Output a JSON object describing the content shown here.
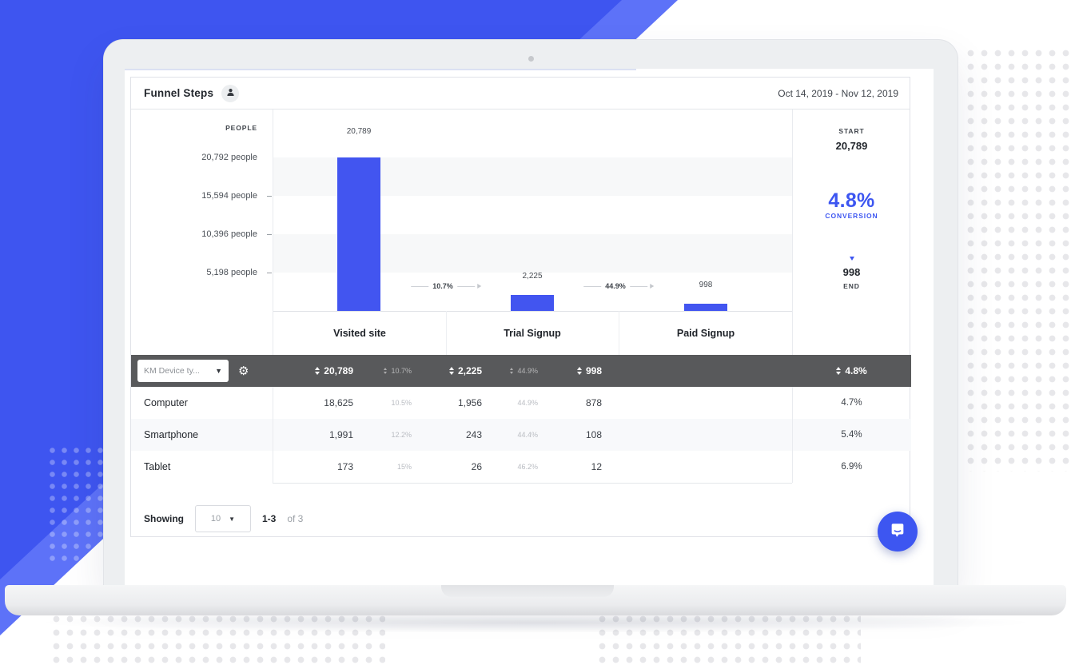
{
  "window": {
    "date_range": "Oct 14, 2019 - Nov 12, 2019"
  },
  "panel": {
    "title": "Funnel Steps"
  },
  "chart_data": {
    "type": "bar",
    "title": "Funnel Steps",
    "ylabel": "PEOPLE",
    "ylim": [
      0,
      20792
    ],
    "y_tick_labels": [
      "20,792 people",
      "15,594 people",
      "10,396 people",
      "5,198 people"
    ],
    "categories": [
      "Visited site",
      "Trial Signup",
      "Paid Signup"
    ],
    "values": [
      20789,
      2225,
      998
    ],
    "value_labels": [
      "20,789",
      "2,225",
      "998"
    ],
    "step_conversion_labels": [
      "10.7%",
      "44.9%"
    ],
    "grid": "alternating horizontal bands",
    "legend": "none",
    "summary": {
      "start_label": "START",
      "start_value": "20,789",
      "conversion_value": "4.8%",
      "conversion_label": "CONVERSION",
      "end_value": "998",
      "end_label": "END"
    }
  },
  "segment_table": {
    "selector_value": "KM Device ty...",
    "header": {
      "visited": "20,789",
      "conv1": "10.7%",
      "trial": "2,225",
      "conv2": "44.9%",
      "paid": "998",
      "overall": "4.8%"
    },
    "rows": [
      {
        "name": "Computer",
        "visited": "18,625",
        "conv1": "10.5%",
        "trial": "1,956",
        "conv2": "44.9%",
        "paid": "878",
        "overall": "4.7%"
      },
      {
        "name": "Smartphone",
        "visited": "1,991",
        "conv1": "12.2%",
        "trial": "243",
        "conv2": "44.4%",
        "paid": "108",
        "overall": "5.4%"
      },
      {
        "name": "Tablet",
        "visited": "173",
        "conv1": "15%",
        "trial": "26",
        "conv2": "46.2%",
        "paid": "12",
        "overall": "6.9%"
      }
    ]
  },
  "pagination": {
    "label": "Showing",
    "page_size": "10",
    "range": "1-3",
    "total": "of 3"
  },
  "colors": {
    "brand": "#3e55f0",
    "brand-light": "#5d72f8",
    "bar": "#4255f0",
    "dark-row": "#58595b",
    "conversion-blue": "#3d56f1"
  }
}
